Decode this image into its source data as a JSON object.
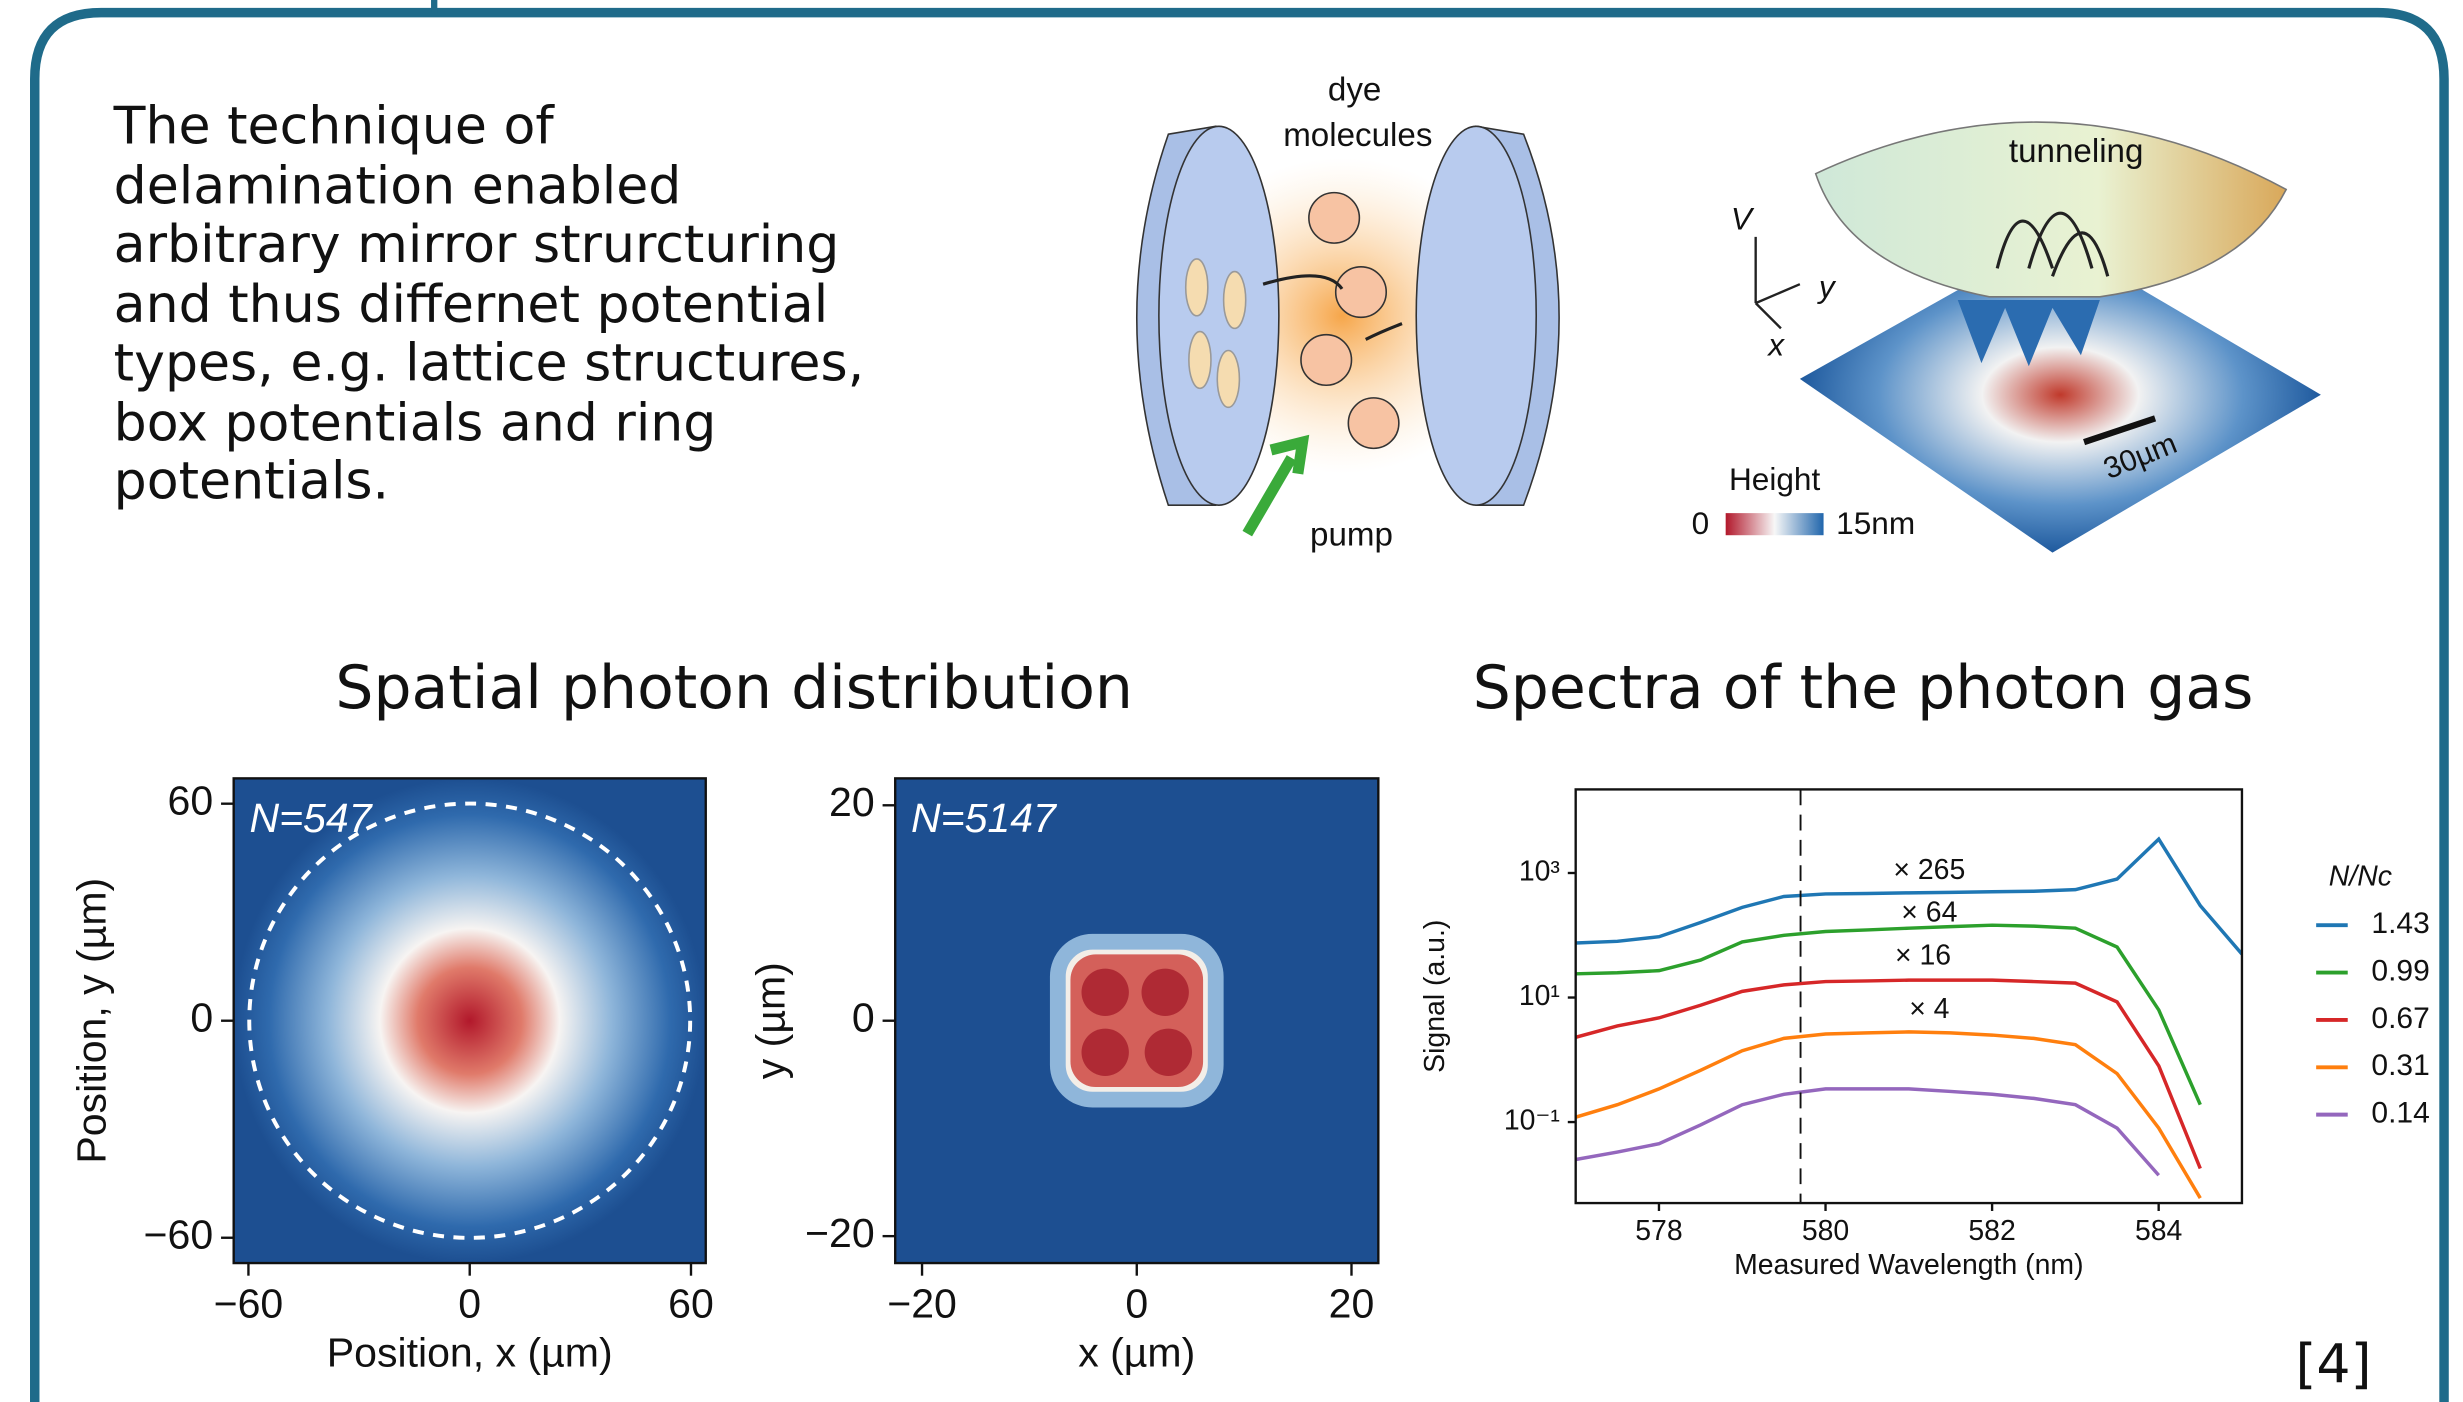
{
  "text_lines": [
    "The technique of",
    "delamination enabled",
    "arbitrary mirror strurcturing",
    "and thus differnet potential",
    "types, e.g. lattice structures,",
    "box potentials and ring",
    "potentials."
  ],
  "cavity_diagram": {
    "label_top_1": "dye",
    "label_top_2": "molecules",
    "label_pump": "pump"
  },
  "trap_diagram": {
    "label_tunneling": "tunneling",
    "axis_v": "V",
    "axis_y": "y",
    "axis_x": "x",
    "colorbar_title": "Height",
    "colorbar_min": "0",
    "colorbar_max": "15nm",
    "scale_bar": "30µm"
  },
  "section_titles": [
    "Spatial photon distribution",
    "Spectra of the photon gas"
  ],
  "reference": "[4]",
  "chart_data": [
    {
      "type": "heatmap",
      "shape": "ring",
      "annotation": "N=547",
      "xlabel": "Position, x (µm)",
      "ylabel": "Position, y (µm)",
      "xlim": [
        -64,
        64
      ],
      "ylim": [
        -67,
        67
      ],
      "xticks": [
        {
          "value": -60,
          "label": "−60"
        },
        0,
        60
      ],
      "yticks": [
        {
          "value": -60,
          "label": "−60"
        },
        0,
        60
      ]
    },
    {
      "type": "heatmap",
      "shape": "box",
      "annotation": "N=5147",
      "xlabel": "x (µm)",
      "ylabel": "y (µm)",
      "xlim": [
        -22.5,
        22.5
      ],
      "ylim": [
        -22.5,
        22.5
      ],
      "xticks": [
        {
          "value": -20,
          "label": "−20"
        },
        0,
        20
      ],
      "yticks": [
        {
          "value": -20,
          "label": "−20"
        },
        0,
        20
      ]
    },
    {
      "type": "line",
      "log_y": true,
      "xlabel": "Measured Wavelength (nm)",
      "ylabel": "Signal (a.u.)",
      "legend_title": "N/Nc",
      "legend": "right",
      "annotations": [
        "× 265",
        "× 64",
        "× 16",
        "× 4"
      ],
      "vline": 579.7,
      "xlim": [
        577,
        585
      ],
      "ylim": [
        0.005,
        22000
      ],
      "xticks": [
        578,
        580,
        582,
        584
      ],
      "yticks": [
        {
          "value": 1000,
          "label": "10³"
        },
        {
          "value": 10,
          "label": "10¹"
        },
        {
          "value": 0.1,
          "label": "10⁻¹"
        }
      ],
      "x": [
        577,
        577.5,
        578,
        578.5,
        579,
        579.5,
        580,
        580.5,
        581,
        581.5,
        582,
        582.5,
        583,
        583.5,
        584,
        584.5,
        585
      ],
      "series": [
        {
          "name": "1.43",
          "color": "#1f77b4",
          "values": [
            75,
            80,
            95,
            160,
            280,
            420,
            460,
            470,
            480,
            490,
            500,
            510,
            540,
            800,
            3500,
            300,
            50
          ]
        },
        {
          "name": "0.99",
          "color": "#2ca02c",
          "values": [
            24,
            25,
            27,
            40,
            78,
            100,
            115,
            122,
            130,
            138,
            145,
            140,
            130,
            65,
            6.3,
            0.19,
            null
          ]
        },
        {
          "name": "0.67",
          "color": "#d62728",
          "values": [
            2.3,
            3.5,
            4.7,
            7.5,
            12.6,
            16,
            18,
            18.5,
            19,
            19,
            19,
            18,
            17,
            8.5,
            0.8,
            0.018,
            null
          ]
        },
        {
          "name": "0.31",
          "color": "#ff7f0e",
          "values": [
            0.12,
            0.19,
            0.34,
            0.68,
            1.4,
            2.2,
            2.6,
            2.7,
            2.8,
            2.7,
            2.5,
            2.2,
            1.75,
            0.6,
            0.08,
            0.006,
            null
          ]
        },
        {
          "name": "0.14",
          "color": "#9467bd",
          "values": [
            0.025,
            0.033,
            0.045,
            0.09,
            0.19,
            0.28,
            0.34,
            0.34,
            0.34,
            0.31,
            0.28,
            0.24,
            0.19,
            0.08,
            0.014,
            null,
            null
          ]
        }
      ]
    }
  ]
}
